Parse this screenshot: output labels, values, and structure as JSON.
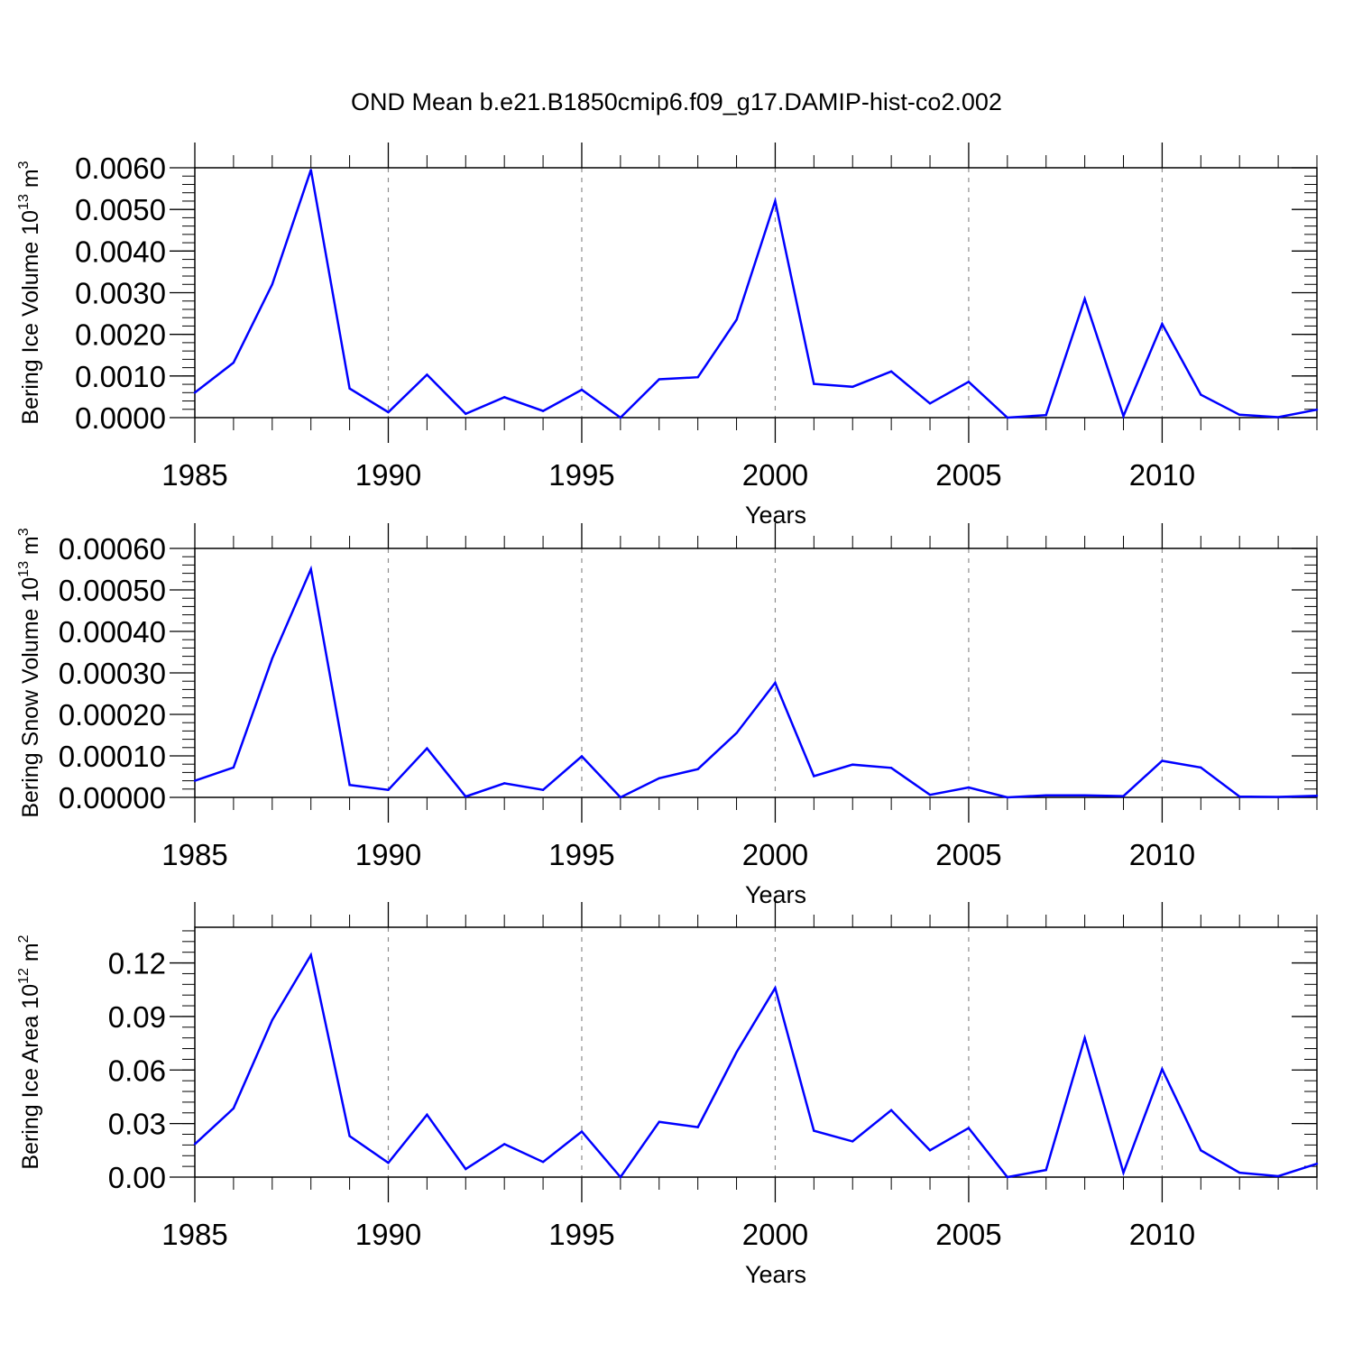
{
  "title": "OND Mean b.e21.B1850cmip6.f09_g17.DAMIP-hist-co2.002",
  "colors": {
    "line": "#0000ff",
    "axis": "#000000",
    "grid": "#8c8c8c"
  },
  "chart_data": [
    {
      "type": "line",
      "ylabel": {
        "text": "Bering Ice Volume 10",
        "sup": "13",
        "unit": " m",
        "unit_sup": "3"
      },
      "xlabel": "Years",
      "xlim": [
        1985,
        2014
      ],
      "ylim": [
        0,
        0.006
      ],
      "yticks": [
        0,
        0.001,
        0.002,
        0.003,
        0.004,
        0.005,
        0.006
      ],
      "ytick_labels": [
        "0.0000",
        "0.0010",
        "0.0020",
        "0.0030",
        "0.0040",
        "0.0050",
        "0.0060"
      ],
      "xticks": [
        1985,
        1990,
        1995,
        2000,
        2005,
        2010
      ],
      "xtick_labels": [
        "1985",
        "1990",
        "1995",
        "2000",
        "2005",
        "2010"
      ],
      "grid": "dashed vertical at major x ticks",
      "series": [
        {
          "x": [
            1985,
            1986,
            1987,
            1988,
            1989,
            1990,
            1991,
            1992,
            1993,
            1994,
            1995,
            1996,
            1997,
            1998,
            1999,
            2000,
            2001,
            2002,
            2003,
            2004,
            2005,
            2006,
            2007,
            2008,
            2009,
            2010,
            2011,
            2012,
            2013,
            2014
          ],
          "values": [
            0.0006,
            0.00132,
            0.0032,
            0.00595,
            0.0007,
            0.00013,
            0.00103,
            9e-05,
            0.00049,
            0.00016,
            0.00067,
            0.0,
            0.00092,
            0.00097,
            0.00235,
            0.0052,
            0.00081,
            0.00074,
            0.00111,
            0.00034,
            0.00086,
            0.0,
            6e-05,
            0.00285,
            4e-05,
            0.00225,
            0.00055,
            7e-05,
            1e-05,
            0.00019
          ]
        }
      ]
    },
    {
      "type": "line",
      "ylabel": {
        "text": "Bering Snow Volume 10",
        "sup": "13",
        "unit": " m",
        "unit_sup": "3"
      },
      "xlabel": "Years",
      "xlim": [
        1985,
        2014
      ],
      "ylim": [
        0,
        0.0006
      ],
      "yticks": [
        0,
        0.0001,
        0.0002,
        0.0003,
        0.0004,
        0.0005,
        0.0006
      ],
      "ytick_labels": [
        "0.00000",
        "0.00010",
        "0.00020",
        "0.00030",
        "0.00040",
        "0.00050",
        "0.00060"
      ],
      "xticks": [
        1985,
        1990,
        1995,
        2000,
        2005,
        2010
      ],
      "xtick_labels": [
        "1985",
        "1990",
        "1995",
        "2000",
        "2005",
        "2010"
      ],
      "grid": "dashed vertical at major x ticks",
      "series": [
        {
          "x": [
            1985,
            1986,
            1987,
            1988,
            1989,
            1990,
            1991,
            1992,
            1993,
            1994,
            1995,
            1996,
            1997,
            1998,
            1999,
            2000,
            2001,
            2002,
            2003,
            2004,
            2005,
            2006,
            2007,
            2008,
            2009,
            2010,
            2011,
            2012,
            2013,
            2014
          ],
          "values": [
            4e-05,
            7.2e-05,
            0.000335,
            0.00055,
            3e-05,
            1.8e-05,
            0.000118,
            2e-06,
            3.4e-05,
            1.8e-05,
            9.9e-05,
            0.0,
            4.6e-05,
            6.8e-05,
            0.000155,
            0.000276,
            5.1e-05,
            7.9e-05,
            7.1e-05,
            6e-06,
            2.4e-05,
            0.0,
            5e-06,
            5e-06,
            3e-06,
            8.8e-05,
            7.2e-05,
            2e-06,
            1e-06,
            4e-06
          ]
        }
      ]
    },
    {
      "type": "line",
      "ylabel": {
        "text": "Bering Ice Area 10",
        "sup": "12",
        "unit": " m",
        "unit_sup": "2"
      },
      "xlabel": "Years",
      "xlim": [
        1985,
        2014
      ],
      "ylim": [
        0,
        0.14
      ],
      "yticks": [
        0,
        0.03,
        0.06,
        0.09,
        0.12
      ],
      "ytick_labels": [
        "0.00",
        "0.03",
        "0.06",
        "0.09",
        "0.12"
      ],
      "xticks": [
        1985,
        1990,
        1995,
        2000,
        2005,
        2010
      ],
      "xtick_labels": [
        "1985",
        "1990",
        "1995",
        "2000",
        "2005",
        "2010"
      ],
      "grid": "dashed vertical at major x ticks",
      "series": [
        {
          "x": [
            1985,
            1986,
            1987,
            1988,
            1989,
            1990,
            1991,
            1992,
            1993,
            1994,
            1995,
            1996,
            1997,
            1998,
            1999,
            2000,
            2001,
            2002,
            2003,
            2004,
            2005,
            2006,
            2007,
            2008,
            2009,
            2010,
            2011,
            2012,
            2013,
            2014
          ],
          "values": [
            0.0185,
            0.0385,
            0.088,
            0.1245,
            0.023,
            0.008,
            0.035,
            0.0045,
            0.0185,
            0.0085,
            0.0255,
            0.0,
            0.031,
            0.028,
            0.07,
            0.106,
            0.026,
            0.02,
            0.0375,
            0.015,
            0.0275,
            0.0,
            0.004,
            0.078,
            0.0025,
            0.0605,
            0.015,
            0.0025,
            0.0005,
            0.0075
          ]
        }
      ]
    }
  ]
}
